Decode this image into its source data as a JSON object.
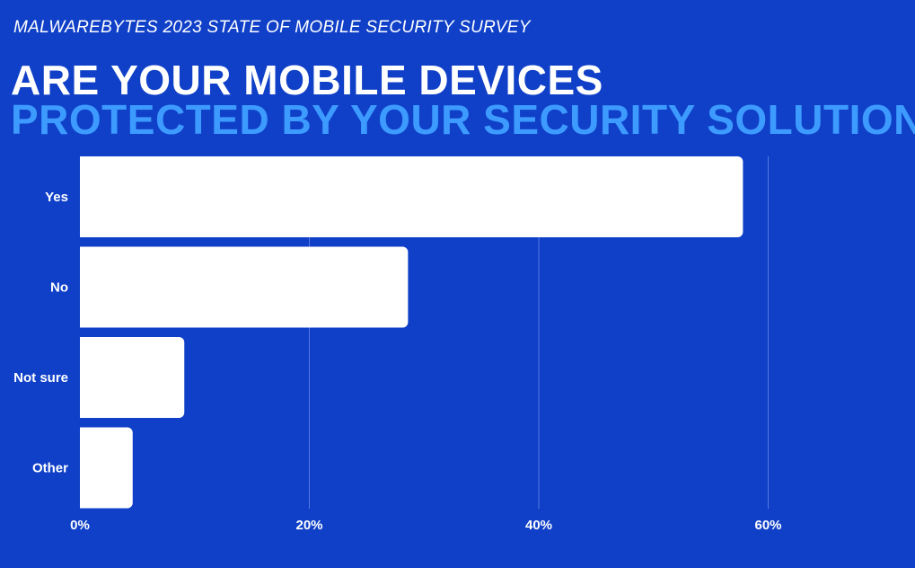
{
  "header": {
    "subtitle": "MALWAREBYTES 2023 STATE OF MOBILE SECURITY SURVEY",
    "title_line1": "ARE YOUR MOBILE DEVICES",
    "title_line2": "PROTECTED BY YOUR SECURITY SOLUTION?"
  },
  "colors": {
    "background": "#1040c8",
    "title_accent": "#3d9bff",
    "bar": "#ffffff",
    "gridline": "#5577e0"
  },
  "chart_data": {
    "type": "bar",
    "orientation": "horizontal",
    "categories": [
      "Yes",
      "No",
      "Not sure",
      "Other"
    ],
    "values": [
      57.8,
      28.6,
      9.1,
      4.6
    ],
    "x_ticks": [
      "0%",
      "20%",
      "40%",
      "60%"
    ],
    "xlim": [
      0,
      70
    ],
    "grid": true
  }
}
